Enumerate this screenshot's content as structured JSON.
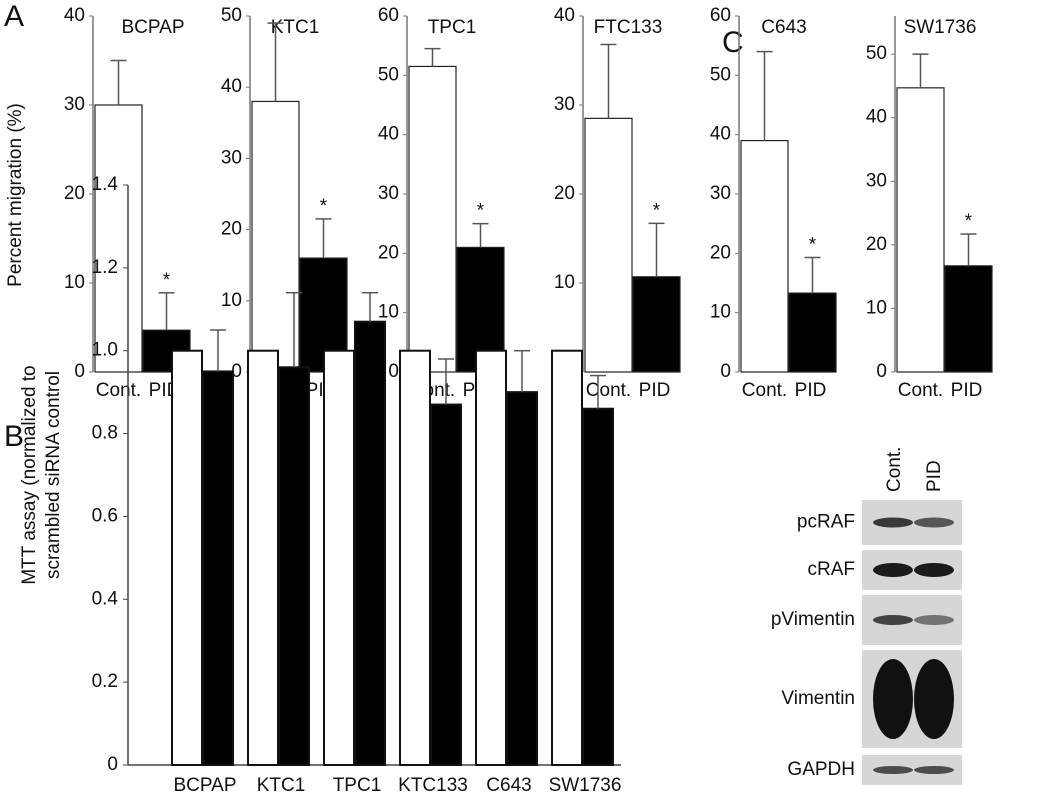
{
  "panel_labels": [
    "A",
    "B",
    "C"
  ],
  "chart_data": [
    {
      "type": "bar",
      "title": "BCPAP",
      "ylabel": "Percent migration (%)",
      "categories": [
        "Cont.",
        "PID"
      ],
      "values": [
        30,
        4.7
      ],
      "errors": [
        5,
        4.2
      ],
      "colors": [
        "#ffffff",
        "#000000"
      ],
      "ylim": [
        0,
        40
      ],
      "yticks": [
        0,
        10,
        20,
        30,
        40
      ],
      "annotation": "*"
    },
    {
      "type": "bar",
      "title": "KTC1",
      "categories": [
        "Cont.",
        "PID"
      ],
      "values": [
        38,
        16
      ],
      "errors": [
        11,
        5.5
      ],
      "colors": [
        "#ffffff",
        "#000000"
      ],
      "ylim": [
        0,
        50
      ],
      "yticks": [
        0,
        10,
        20,
        30,
        40,
        50
      ],
      "annotation": "*"
    },
    {
      "type": "bar",
      "title": "TPC1",
      "categories": [
        "Cont.",
        "PID"
      ],
      "values": [
        51.5,
        21
      ],
      "errors": [
        3,
        4
      ],
      "colors": [
        "#ffffff",
        "#000000"
      ],
      "ylim": [
        0,
        60
      ],
      "yticks": [
        0,
        10,
        20,
        30,
        40,
        50,
        60
      ],
      "annotation": "*"
    },
    {
      "type": "bar",
      "title": "FTC133",
      "categories": [
        "Cont.",
        "PID"
      ],
      "values": [
        28.5,
        10.7
      ],
      "errors": [
        8.3,
        6
      ],
      "colors": [
        "#ffffff",
        "#000000"
      ],
      "ylim": [
        0,
        40
      ],
      "yticks": [
        0,
        10,
        20,
        30,
        40
      ],
      "annotation": "*"
    },
    {
      "type": "bar",
      "title": "C643",
      "categories": [
        "Cont.",
        "PID"
      ],
      "values": [
        39,
        13.3
      ],
      "errors": [
        15,
        6
      ],
      "colors": [
        "#ffffff",
        "#000000"
      ],
      "ylim": [
        0,
        60
      ],
      "yticks": [
        0,
        10,
        20,
        30,
        40,
        50,
        60
      ],
      "annotation": "*"
    },
    {
      "type": "bar",
      "title": "SW1736",
      "categories": [
        "Cont.",
        "PID"
      ],
      "values": [
        44.7,
        16.7
      ],
      "errors": [
        5.3,
        5
      ],
      "colors": [
        "#ffffff",
        "#000000"
      ],
      "ylim": [
        0,
        56
      ],
      "yticks": [
        0,
        10,
        20,
        30,
        40,
        50
      ],
      "annotation": "*"
    },
    {
      "type": "grouped_bar",
      "ylabel": [
        "MTT assay (normalized to",
        "scrambled siRNA control"
      ],
      "categories": [
        "BCPAP",
        "KTC1",
        "TPC1",
        "KTC133",
        "C643",
        "SW1736"
      ],
      "series": [
        {
          "color": "#ffffff",
          "values": [
            1,
            1,
            1,
            1,
            1,
            1
          ]
        },
        {
          "color": "#000000",
          "values": [
            0.95,
            0.96,
            1.07,
            0.87,
            0.9,
            0.86
          ],
          "errors": [
            0.1,
            0.18,
            0.07,
            0.11,
            0.1,
            0.08
          ]
        }
      ],
      "ylim": [
        0,
        1.4
      ],
      "yticks": [
        0,
        0.2,
        0.4,
        0.6,
        0.8,
        {
          "value": 1.0,
          "label": "1.0"
        },
        1.2,
        1.4
      ]
    }
  ],
  "blot": {
    "columns": [
      "Cont.",
      "PID"
    ],
    "rows": [
      "pcRAF",
      "cRAF",
      "pVimentin",
      "Vimentin",
      "GAPDH"
    ]
  }
}
